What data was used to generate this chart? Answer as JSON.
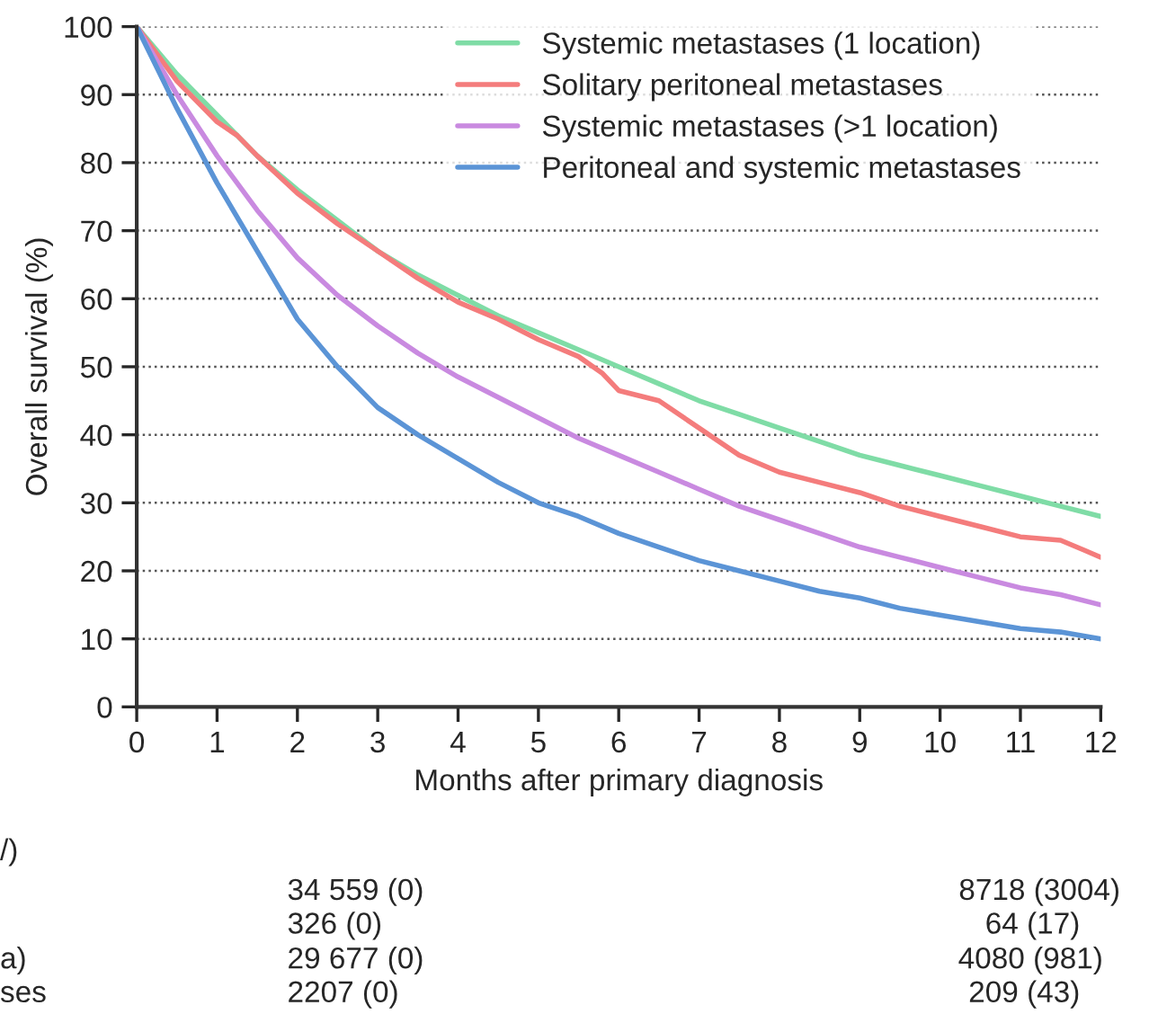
{
  "chart_data": {
    "type": "line",
    "xlabel": "Months after primary diagnosis",
    "ylabel": "Overall survival (%)",
    "x": [
      0,
      0.5,
      1,
      1.5,
      2,
      2.5,
      3,
      3.5,
      4,
      4.5,
      5,
      5.5,
      6,
      6.5,
      7,
      7.5,
      8,
      8.5,
      9,
      9.5,
      10,
      10.5,
      11,
      11.5,
      12
    ],
    "series": [
      {
        "name": "Systemic metastases (1 location)",
        "color": "#7fdca6",
        "values": [
          100,
          93,
          87,
          81,
          76,
          71.5,
          67,
          63.5,
          60.5,
          57.5,
          55,
          52.5,
          50,
          47.5,
          45,
          43,
          41,
          39,
          37,
          35.5,
          34,
          32.5,
          31,
          29.5,
          28
        ]
      },
      {
        "name": "Solitary peritoneal metastases",
        "color": "#f47c7c",
        "x": [
          0,
          0.5,
          1,
          1.25,
          1.5,
          2,
          2.5,
          3,
          3.5,
          4,
          4.5,
          5,
          5.5,
          5.8,
          6,
          6.5,
          7,
          7.5,
          8,
          8.5,
          9,
          9.5,
          10,
          10.5,
          11,
          11.5,
          11.8,
          12
        ],
        "values": [
          100,
          92,
          86,
          84,
          81,
          75.5,
          71,
          67,
          63,
          59.5,
          57,
          54,
          51.5,
          49,
          46.5,
          45,
          41,
          37,
          34.5,
          33,
          31.5,
          29.5,
          28,
          26.5,
          25,
          24.5,
          23,
          22
        ]
      },
      {
        "name": "Systemic metastases (>1 location)",
        "color": "#c98ae0",
        "values": [
          100,
          90,
          81,
          73,
          66,
          60.5,
          56,
          52,
          48.5,
          45.5,
          42.5,
          39.5,
          37,
          34.5,
          32,
          29.5,
          27.5,
          25.5,
          23.5,
          22,
          20.5,
          19,
          17.5,
          16.5,
          15
        ]
      },
      {
        "name": "Peritoneal and systemic metastases",
        "color": "#5b94d6",
        "values": [
          100,
          88,
          77,
          67,
          57,
          50,
          44,
          40,
          36.5,
          33,
          30,
          28,
          25.5,
          23.5,
          21.5,
          20,
          18.5,
          17,
          16,
          14.5,
          13.5,
          12.5,
          11.5,
          11,
          10
        ]
      }
    ],
    "xlim": [
      0,
      12
    ],
    "xticks": [
      0,
      1,
      2,
      3,
      4,
      5,
      6,
      7,
      8,
      9,
      10,
      11,
      12
    ],
    "ylim": [
      0,
      100
    ],
    "yticks": [
      0,
      10,
      20,
      30,
      40,
      50,
      60,
      70,
      80,
      90,
      100
    ],
    "grid": "y",
    "legend": "top right",
    "annotations": [
      "/)",
      "34 559 (0)",
      "8718 (3004)",
      "326 (0)",
      "64 (17)",
      "a)",
      "29 677 (0)",
      "4080 (981)",
      "ses",
      "2207 (0)",
      "209 (43)"
    ]
  }
}
